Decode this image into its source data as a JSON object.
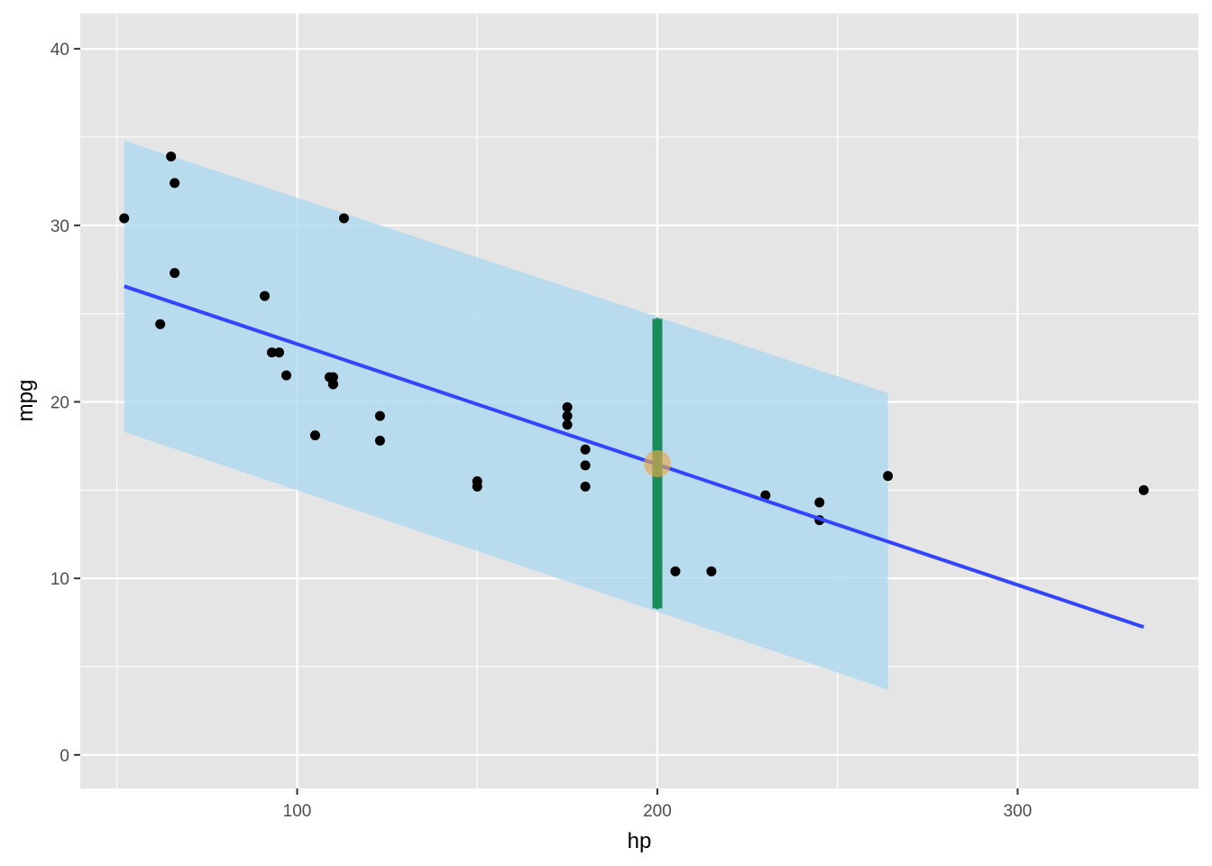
{
  "chart_data": {
    "type": "scatter",
    "xlabel": "hp",
    "ylabel": "mpg",
    "xlim": [
      39.8,
      350.2
    ],
    "ylim": [
      -1.9,
      42.0
    ],
    "x_ticks": [
      100,
      200,
      300
    ],
    "x_minor_ticks": [
      50,
      150,
      250
    ],
    "y_ticks": [
      0,
      10,
      20,
      30,
      40
    ],
    "y_minor_ticks": [
      5,
      15,
      25,
      35
    ],
    "grid": true,
    "points": [
      {
        "x": 110,
        "y": 21.0
      },
      {
        "x": 110,
        "y": 21.0
      },
      {
        "x": 93,
        "y": 22.8
      },
      {
        "x": 110,
        "y": 21.4
      },
      {
        "x": 175,
        "y": 18.7
      },
      {
        "x": 105,
        "y": 18.1
      },
      {
        "x": 245,
        "y": 14.3
      },
      {
        "x": 62,
        "y": 24.4
      },
      {
        "x": 95,
        "y": 22.8
      },
      {
        "x": 123,
        "y": 19.2
      },
      {
        "x": 123,
        "y": 17.8
      },
      {
        "x": 180,
        "y": 16.4
      },
      {
        "x": 180,
        "y": 17.3
      },
      {
        "x": 180,
        "y": 15.2
      },
      {
        "x": 205,
        "y": 10.4
      },
      {
        "x": 215,
        "y": 10.4
      },
      {
        "x": 230,
        "y": 14.7
      },
      {
        "x": 66,
        "y": 32.4
      },
      {
        "x": 52,
        "y": 30.4
      },
      {
        "x": 65,
        "y": 33.9
      },
      {
        "x": 97,
        "y": 21.5
      },
      {
        "x": 150,
        "y": 15.5
      },
      {
        "x": 150,
        "y": 15.2
      },
      {
        "x": 245,
        "y": 13.3
      },
      {
        "x": 175,
        "y": 19.2
      },
      {
        "x": 66,
        "y": 27.3
      },
      {
        "x": 91,
        "y": 26.0
      },
      {
        "x": 113,
        "y": 30.4
      },
      {
        "x": 264,
        "y": 15.8
      },
      {
        "x": 175,
        "y": 19.7
      },
      {
        "x": 335,
        "y": 15.0
      },
      {
        "x": 109,
        "y": 21.4
      }
    ],
    "regression_line": {
      "x_start": 52,
      "y_start": 26.55,
      "x_end": 335,
      "y_end": 7.24,
      "color": "#3344ff"
    },
    "prediction_band": {
      "x_start": 52,
      "x_end": 264,
      "upper_start": 34.8,
      "upper_end": 20.5,
      "lower_start": 18.3,
      "lower_end": 3.7,
      "color": "#add8f0"
    },
    "highlight_point": {
      "x": 200,
      "y": 16.5,
      "color": "#e8a94a"
    },
    "interval_bar": {
      "x": 200,
      "ymin": 8.3,
      "ymax": 24.7,
      "color": "#1a8c5a"
    },
    "colors": {
      "panel": "#e5e5e5",
      "grid": "#ffffff",
      "point": "#000000"
    }
  }
}
